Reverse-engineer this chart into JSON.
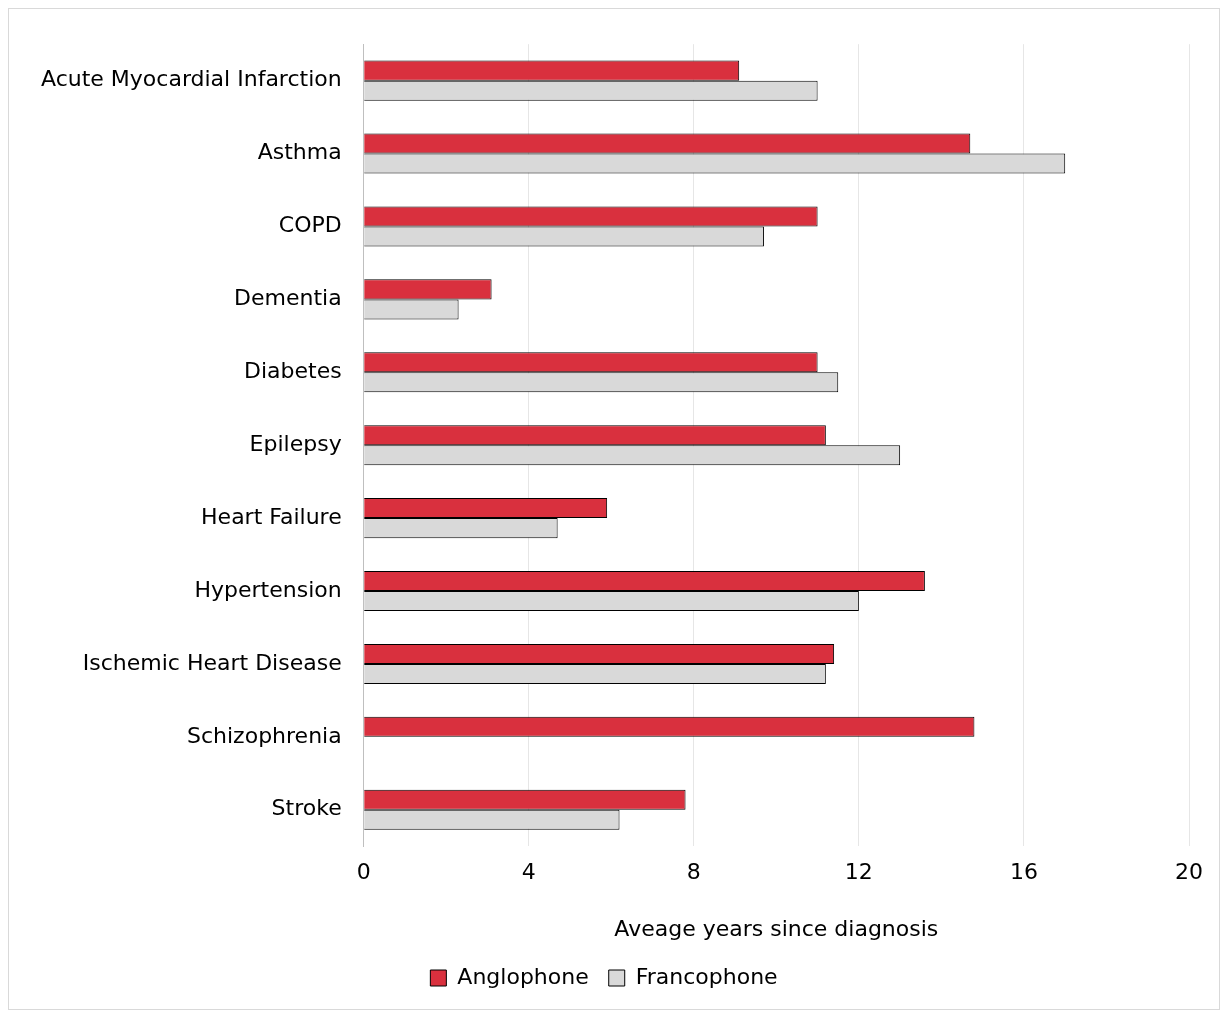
{
  "chart_data": {
    "type": "bar",
    "orientation": "horizontal",
    "categories": [
      "Acute Myocardial Infarction",
      "Asthma",
      "COPD",
      "Dementia",
      "Diabetes",
      "Epilepsy",
      "Heart Failure",
      "Hypertension",
      "Ischemic Heart Disease",
      "Schizophrenia",
      "Stroke"
    ],
    "series": [
      {
        "name": "Anglophone",
        "color": "#d9303e",
        "values": [
          9.1,
          14.7,
          11.0,
          3.1,
          11.0,
          11.2,
          5.9,
          13.6,
          11.4,
          14.8,
          7.8
        ]
      },
      {
        "name": "Francophone",
        "color": "#d9d9d9",
        "values": [
          11.0,
          17.0,
          9.7,
          2.3,
          11.5,
          13.0,
          4.7,
          12.0,
          11.2,
          null,
          6.2
        ]
      }
    ],
    "xlabel": "Aveage years since diagnosis",
    "xlim": [
      0,
      20
    ],
    "xticks": [
      0,
      4,
      8,
      12,
      16,
      20
    ],
    "grid": "x",
    "legend": "bottom"
  }
}
